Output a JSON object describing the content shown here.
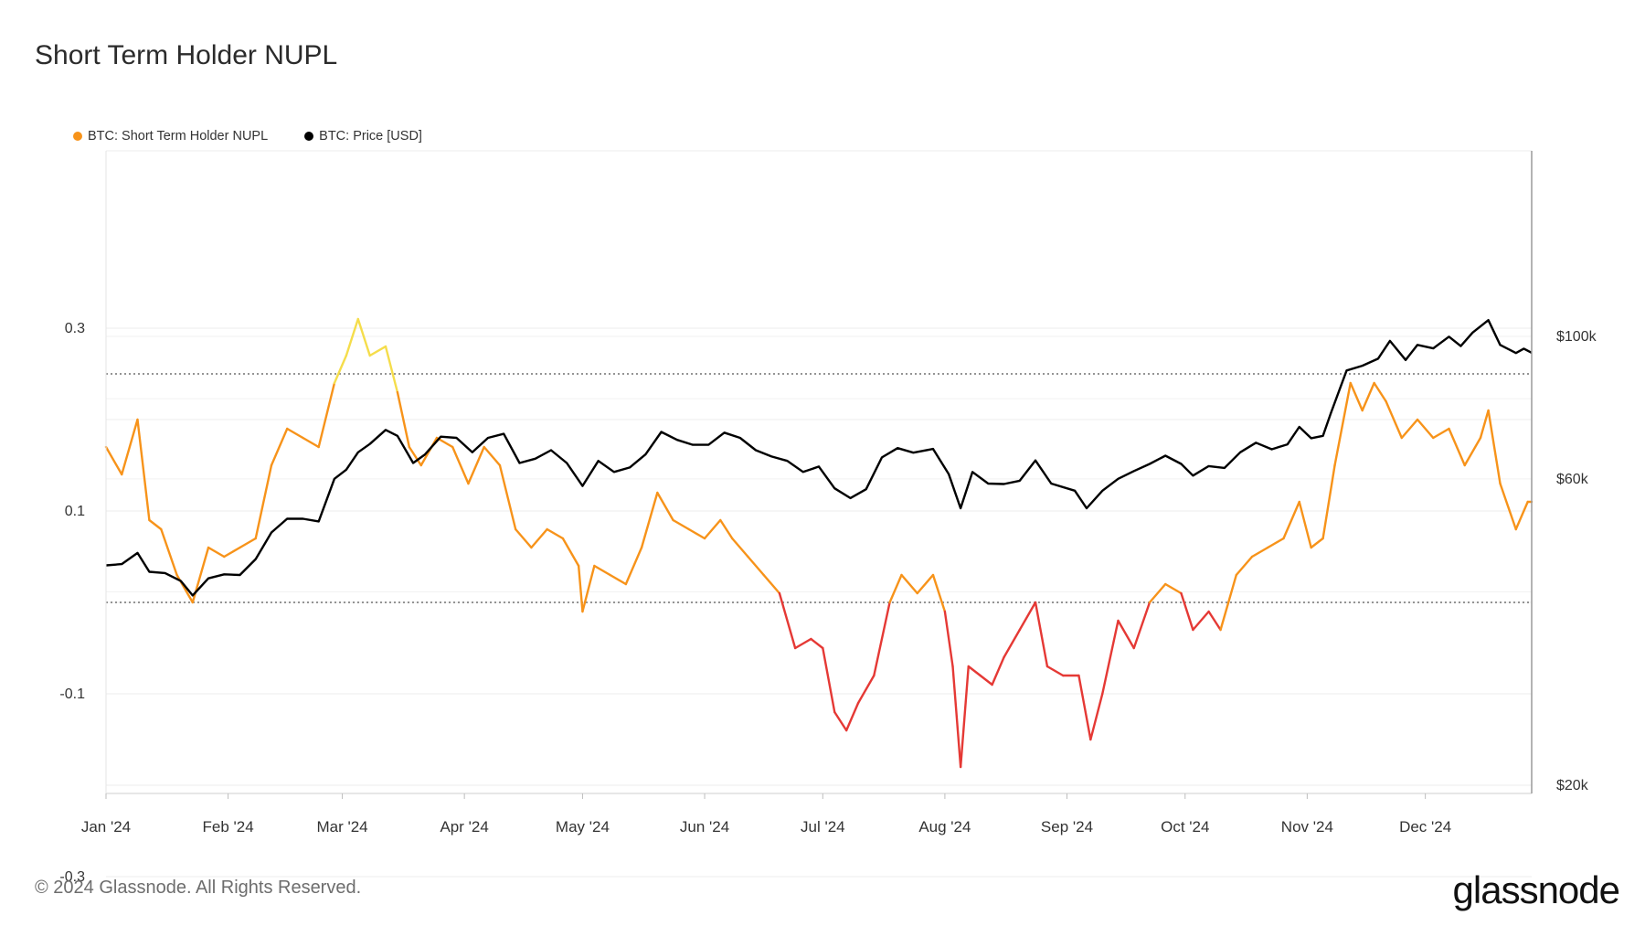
{
  "title": "Short Term Holder NUPL",
  "legend": [
    {
      "label": "BTC: Short Term Holder NUPL",
      "color": "#f7931a"
    },
    {
      "label": "BTC: Price [USD]",
      "color": "#000000"
    }
  ],
  "footer": "© 2024 Glassnode. All Rights Reserved.",
  "brand": "glassnode",
  "colors": {
    "nupl_orange": "#f7931a",
    "nupl_red": "#e53935",
    "nupl_yellow": "#f5dd4b",
    "price": "#000000"
  },
  "chart_data": {
    "type": "line",
    "title": "Short Term Holder NUPL",
    "x_ticks": [
      "Jan '24",
      "Feb '24",
      "Mar '24",
      "Apr '24",
      "May '24",
      "Jun '24",
      "Jul '24",
      "Aug '24",
      "Sep '24",
      "Oct '24",
      "Nov '24",
      "Dec '24"
    ],
    "y_left": {
      "ticks": [
        "0.3",
        "0.1",
        "-0.1",
        "-0.3"
      ],
      "range": [
        -0.3,
        0.3
      ]
    },
    "y_right": {
      "ticks": [
        "$100k",
        "$60k",
        "$20k"
      ],
      "scale": "log"
    },
    "reference_lines": [
      0.25,
      0
    ],
    "grid": true,
    "legend_position": "top-left",
    "series": [
      {
        "name": "BTC: Short Term Holder NUPL",
        "axis": "left",
        "color_rule": "yellow above 0.25, orange 0 to 0.25, red below 0",
        "points": [
          [
            "2024-01-01",
            0.17
          ],
          [
            "2024-01-05",
            0.14
          ],
          [
            "2024-01-09",
            0.2
          ],
          [
            "2024-01-12",
            0.09
          ],
          [
            "2024-01-15",
            0.08
          ],
          [
            "2024-01-19",
            0.03
          ],
          [
            "2024-01-23",
            0.0
          ],
          [
            "2024-01-27",
            0.06
          ],
          [
            "2024-01-31",
            0.05
          ],
          [
            "2024-02-04",
            0.06
          ],
          [
            "2024-02-08",
            0.07
          ],
          [
            "2024-02-12",
            0.15
          ],
          [
            "2024-02-16",
            0.19
          ],
          [
            "2024-02-20",
            0.18
          ],
          [
            "2024-02-24",
            0.17
          ],
          [
            "2024-02-28",
            0.24
          ],
          [
            "2024-03-02",
            0.27
          ],
          [
            "2024-03-05",
            0.31
          ],
          [
            "2024-03-08",
            0.27
          ],
          [
            "2024-03-12",
            0.28
          ],
          [
            "2024-03-15",
            0.23
          ],
          [
            "2024-03-18",
            0.17
          ],
          [
            "2024-03-21",
            0.15
          ],
          [
            "2024-03-25",
            0.18
          ],
          [
            "2024-03-29",
            0.17
          ],
          [
            "2024-04-02",
            0.13
          ],
          [
            "2024-04-06",
            0.17
          ],
          [
            "2024-04-10",
            0.15
          ],
          [
            "2024-04-14",
            0.08
          ],
          [
            "2024-04-18",
            0.06
          ],
          [
            "2024-04-22",
            0.08
          ],
          [
            "2024-04-26",
            0.07
          ],
          [
            "2024-04-30",
            0.04
          ],
          [
            "2024-05-01",
            -0.01
          ],
          [
            "2024-05-04",
            0.04
          ],
          [
            "2024-05-08",
            0.03
          ],
          [
            "2024-05-12",
            0.02
          ],
          [
            "2024-05-16",
            0.06
          ],
          [
            "2024-05-20",
            0.12
          ],
          [
            "2024-05-24",
            0.09
          ],
          [
            "2024-05-28",
            0.08
          ],
          [
            "2024-06-01",
            0.07
          ],
          [
            "2024-06-05",
            0.09
          ],
          [
            "2024-06-08",
            0.07
          ],
          [
            "2024-06-12",
            0.05
          ],
          [
            "2024-06-16",
            0.03
          ],
          [
            "2024-06-20",
            0.01
          ],
          [
            "2024-06-24",
            -0.05
          ],
          [
            "2024-06-28",
            -0.04
          ],
          [
            "2024-07-01",
            -0.05
          ],
          [
            "2024-07-04",
            -0.12
          ],
          [
            "2024-07-07",
            -0.14
          ],
          [
            "2024-07-10",
            -0.11
          ],
          [
            "2024-07-14",
            -0.08
          ],
          [
            "2024-07-18",
            0.0
          ],
          [
            "2024-07-21",
            0.03
          ],
          [
            "2024-07-25",
            0.01
          ],
          [
            "2024-07-29",
            0.03
          ],
          [
            "2024-08-01",
            -0.01
          ],
          [
            "2024-08-03",
            -0.07
          ],
          [
            "2024-08-05",
            -0.18
          ],
          [
            "2024-08-07",
            -0.07
          ],
          [
            "2024-08-10",
            -0.08
          ],
          [
            "2024-08-13",
            -0.09
          ],
          [
            "2024-08-16",
            -0.06
          ],
          [
            "2024-08-20",
            -0.03
          ],
          [
            "2024-08-24",
            0.0
          ],
          [
            "2024-08-27",
            -0.07
          ],
          [
            "2024-08-31",
            -0.08
          ],
          [
            "2024-09-04",
            -0.08
          ],
          [
            "2024-09-07",
            -0.15
          ],
          [
            "2024-09-10",
            -0.1
          ],
          [
            "2024-09-14",
            -0.02
          ],
          [
            "2024-09-18",
            -0.05
          ],
          [
            "2024-09-22",
            0.0
          ],
          [
            "2024-09-26",
            0.02
          ],
          [
            "2024-09-30",
            0.01
          ],
          [
            "2024-10-03",
            -0.03
          ],
          [
            "2024-10-07",
            -0.01
          ],
          [
            "2024-10-10",
            -0.03
          ],
          [
            "2024-10-14",
            0.03
          ],
          [
            "2024-10-18",
            0.05
          ],
          [
            "2024-10-22",
            0.06
          ],
          [
            "2024-10-26",
            0.07
          ],
          [
            "2024-10-30",
            0.11
          ],
          [
            "2024-11-02",
            0.06
          ],
          [
            "2024-11-05",
            0.07
          ],
          [
            "2024-11-08",
            0.15
          ],
          [
            "2024-11-12",
            0.24
          ],
          [
            "2024-11-15",
            0.21
          ],
          [
            "2024-11-18",
            0.24
          ],
          [
            "2024-11-21",
            0.22
          ],
          [
            "2024-11-25",
            0.18
          ],
          [
            "2024-11-29",
            0.2
          ],
          [
            "2024-12-03",
            0.18
          ],
          [
            "2024-12-07",
            0.19
          ],
          [
            "2024-12-11",
            0.15
          ],
          [
            "2024-12-15",
            0.18
          ],
          [
            "2024-12-17",
            0.21
          ],
          [
            "2024-12-20",
            0.13
          ],
          [
            "2024-12-24",
            0.08
          ],
          [
            "2024-12-27",
            0.11
          ],
          [
            "2024-12-28",
            0.11
          ]
        ]
      },
      {
        "name": "BTC: Price [USD]",
        "axis": "right",
        "color": "#000000",
        "points": [
          [
            "2024-01-01",
            44000
          ],
          [
            "2024-01-05",
            44200
          ],
          [
            "2024-01-09",
            46000
          ],
          [
            "2024-01-12",
            43000
          ],
          [
            "2024-01-16",
            42800
          ],
          [
            "2024-01-20",
            41600
          ],
          [
            "2024-01-23",
            39500
          ],
          [
            "2024-01-27",
            42000
          ],
          [
            "2024-01-31",
            42600
          ],
          [
            "2024-02-04",
            42500
          ],
          [
            "2024-02-08",
            45000
          ],
          [
            "2024-02-12",
            49500
          ],
          [
            "2024-02-16",
            52000
          ],
          [
            "2024-02-20",
            52000
          ],
          [
            "2024-02-24",
            51500
          ],
          [
            "2024-02-28",
            60000
          ],
          [
            "2024-03-02",
            62000
          ],
          [
            "2024-03-05",
            66000
          ],
          [
            "2024-03-08",
            68000
          ],
          [
            "2024-03-12",
            71500
          ],
          [
            "2024-03-15",
            70000
          ],
          [
            "2024-03-19",
            63500
          ],
          [
            "2024-03-22",
            65500
          ],
          [
            "2024-03-26",
            69800
          ],
          [
            "2024-03-30",
            69500
          ],
          [
            "2024-04-03",
            66000
          ],
          [
            "2024-04-07",
            69500
          ],
          [
            "2024-04-11",
            70500
          ],
          [
            "2024-04-15",
            63500
          ],
          [
            "2024-04-19",
            64500
          ],
          [
            "2024-04-23",
            66500
          ],
          [
            "2024-04-27",
            63500
          ],
          [
            "2024-05-01",
            58500
          ],
          [
            "2024-05-05",
            64000
          ],
          [
            "2024-05-09",
            61500
          ],
          [
            "2024-05-13",
            62500
          ],
          [
            "2024-05-17",
            65500
          ],
          [
            "2024-05-21",
            71000
          ],
          [
            "2024-05-25",
            69000
          ],
          [
            "2024-05-29",
            67800
          ],
          [
            "2024-06-02",
            67800
          ],
          [
            "2024-06-06",
            70800
          ],
          [
            "2024-06-10",
            69500
          ],
          [
            "2024-06-14",
            66500
          ],
          [
            "2024-06-18",
            65000
          ],
          [
            "2024-06-22",
            64000
          ],
          [
            "2024-06-26",
            61500
          ],
          [
            "2024-06-30",
            62700
          ],
          [
            "2024-07-04",
            58000
          ],
          [
            "2024-07-08",
            56000
          ],
          [
            "2024-07-12",
            57800
          ],
          [
            "2024-07-16",
            64800
          ],
          [
            "2024-07-20",
            67000
          ],
          [
            "2024-07-24",
            65900
          ],
          [
            "2024-07-29",
            66800
          ],
          [
            "2024-08-02",
            61000
          ],
          [
            "2024-08-05",
            54000
          ],
          [
            "2024-08-08",
            61500
          ],
          [
            "2024-08-12",
            59000
          ],
          [
            "2024-08-16",
            58900
          ],
          [
            "2024-08-20",
            59600
          ],
          [
            "2024-08-24",
            64100
          ],
          [
            "2024-08-28",
            59000
          ],
          [
            "2024-09-03",
            57500
          ],
          [
            "2024-09-06",
            54000
          ],
          [
            "2024-09-10",
            57500
          ],
          [
            "2024-09-14",
            60000
          ],
          [
            "2024-09-18",
            61700
          ],
          [
            "2024-09-22",
            63300
          ],
          [
            "2024-09-26",
            65200
          ],
          [
            "2024-09-30",
            63300
          ],
          [
            "2024-10-03",
            60700
          ],
          [
            "2024-10-07",
            62800
          ],
          [
            "2024-10-11",
            62400
          ],
          [
            "2024-10-15",
            66000
          ],
          [
            "2024-10-19",
            68300
          ],
          [
            "2024-10-23",
            66700
          ],
          [
            "2024-10-27",
            67900
          ],
          [
            "2024-10-30",
            72300
          ],
          [
            "2024-11-02",
            69400
          ],
          [
            "2024-11-05",
            70000
          ],
          [
            "2024-11-07",
            75900
          ],
          [
            "2024-11-11",
            88500
          ],
          [
            "2024-11-15",
            90000
          ],
          [
            "2024-11-19",
            92300
          ],
          [
            "2024-11-22",
            98400
          ],
          [
            "2024-11-26",
            91900
          ],
          [
            "2024-11-29",
            97000
          ],
          [
            "2024-12-03",
            95800
          ],
          [
            "2024-12-07",
            99900
          ],
          [
            "2024-12-10",
            96600
          ],
          [
            "2024-12-13",
            101400
          ],
          [
            "2024-12-17",
            106000
          ],
          [
            "2024-12-20",
            97000
          ],
          [
            "2024-12-24",
            94200
          ],
          [
            "2024-12-26",
            95700
          ],
          [
            "2024-12-28",
            94300
          ]
        ]
      }
    ]
  }
}
